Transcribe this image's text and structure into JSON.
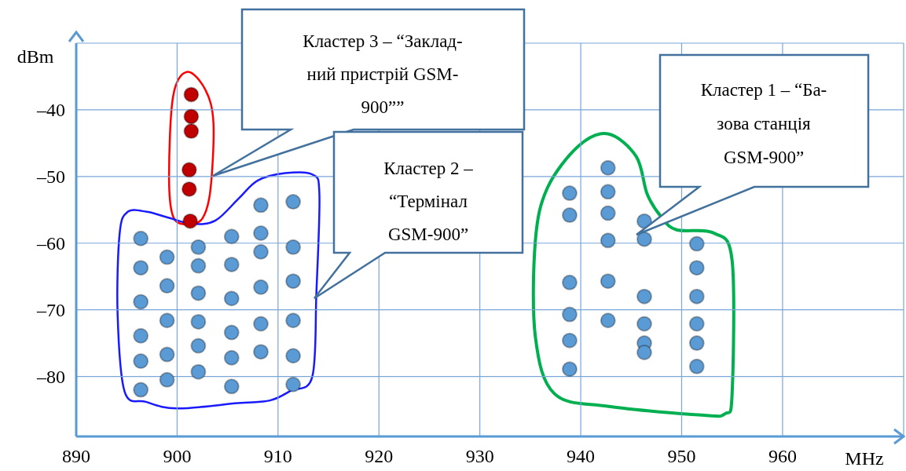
{
  "chart_data": {
    "type": "scatter",
    "xlabel": "MHz",
    "ylabel": "dBm",
    "xlim": [
      890,
      972
    ],
    "ylim": [
      -89,
      -30
    ],
    "xticks": [
      890,
      900,
      910,
      920,
      930,
      940,
      950,
      960
    ],
    "yticks": [
      {
        "value": -40,
        "label": "–40"
      },
      {
        "value": -50,
        "label": "–50"
      },
      {
        "value": -60,
        "label": "–60"
      },
      {
        "value": -70,
        "label": "–70"
      },
      {
        "value": -80,
        "label": "–80"
      }
    ],
    "grid": true,
    "marker": "circle",
    "series": [
      {
        "color": "#c00000",
        "x": [
          901.4,
          901.4,
          901.4,
          901.2,
          901.2,
          901.3
        ],
        "values": [
          -37.7,
          -41,
          -43.2,
          -49,
          -51.9,
          -56.7
        ]
      },
      {
        "color": "#5b9bd5",
        "x": [
          896.4,
          896.4,
          896.4,
          896.4,
          896.4,
          896.4,
          899,
          899,
          899,
          899,
          899,
          902.1,
          902.1,
          902.1,
          902.1,
          902.1,
          902.1,
          905.4,
          905.4,
          905.4,
          905.4,
          905.4,
          905.4,
          908.3,
          908.3,
          908.3,
          908.3,
          908.3,
          908.3,
          911.5,
          911.5,
          911.5,
          911.5,
          911.5,
          911.5
        ],
        "values": [
          -59.3,
          -63.7,
          -68.8,
          -73.9,
          -77.7,
          -82,
          -62.1,
          -66.4,
          -71.6,
          -76.7,
          -80.5,
          -60.6,
          -63.4,
          -67.5,
          -71.8,
          -75.4,
          -79.3,
          -59,
          -63.2,
          -68.3,
          -73.4,
          -77.2,
          -81.5,
          -54.3,
          -58.5,
          -61.3,
          -66.6,
          -72.1,
          -76.3,
          -53.8,
          -60.6,
          -65.7,
          -71.6,
          -76.9,
          -81.2
        ]
      },
      {
        "color": "#5b9bd5",
        "x": [
          938.9,
          938.9,
          938.9,
          938.9,
          938.9,
          938.9,
          942.7,
          942.7,
          942.7,
          942.7,
          942.7,
          942.7,
          946.3,
          946.3,
          946.3,
          946.3,
          946.3,
          946.3,
          951.5,
          951.5,
          951.5,
          951.5,
          951.5,
          951.5
        ],
        "values": [
          -52.5,
          -55.8,
          -65.9,
          -70.7,
          -74.6,
          -78.9,
          -48.7,
          -52.3,
          -55.5,
          -59.6,
          -65.7,
          -71.6,
          -56.7,
          -59.4,
          -68,
          -72.1,
          -75,
          -76.4,
          -60.1,
          -63.7,
          -68,
          -72.1,
          -75,
          -78.5
        ]
      }
    ],
    "annotations": [
      "Кластер 3 – “Заклад-\nний пристрій GSM-\n900””",
      "Кластер 2 –\n“Термінал\nGSM-900”",
      "Кластер 1 – “Ба-\nзова станція\nGSM-900”"
    ]
  }
}
